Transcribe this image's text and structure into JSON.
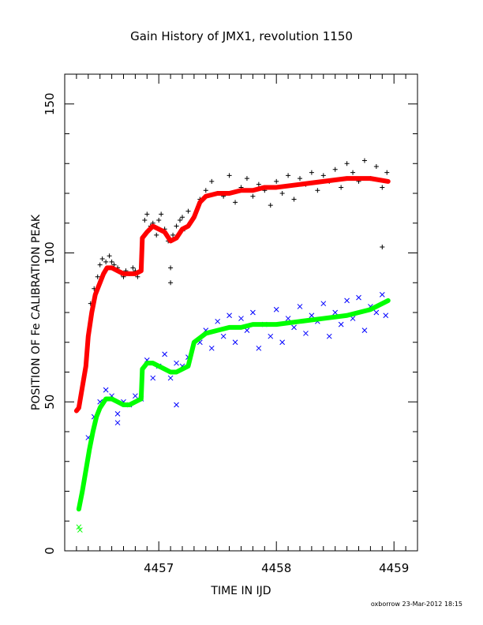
{
  "chart_data": {
    "type": "scatter",
    "title": "Gain History of JMX1, revolution 1150",
    "xlabel": "TIME IN IJD",
    "ylabel": "POSITION OF Fe CALIBRATION PEAK",
    "credit": "oxborrow 23-Mar-2012 18:15",
    "xlim": [
      4456.2,
      4459.2
    ],
    "ylim": [
      0,
      160
    ],
    "xticks": [
      4457,
      4458,
      4459
    ],
    "yticks": [
      0,
      50,
      100,
      150
    ],
    "grid": false,
    "series": [
      {
        "marker": "plus",
        "color": "#000000",
        "x": [
          4456.42,
          4456.45,
          4456.48,
          4456.5,
          4456.52,
          4456.55,
          4456.58,
          4456.6,
          4456.62,
          4456.65,
          4456.68,
          4456.7,
          4456.72,
          4456.75,
          4456.78,
          4456.8,
          4456.82,
          4456.88,
          4456.9,
          4456.93,
          4456.95,
          4456.98,
          4457.0,
          4457.02,
          4457.05,
          4457.08,
          4457.1,
          4457.12,
          4457.15,
          4457.18,
          4457.2,
          4457.22,
          4457.25,
          4457.35,
          4457.4,
          4457.45,
          4457.5,
          4457.55,
          4457.6,
          4457.65,
          4457.7,
          4457.75,
          4457.8,
          4457.85,
          4457.9,
          4457.95,
          4458.0,
          4458.05,
          4458.1,
          4458.15,
          4458.2,
          4458.25,
          4458.3,
          4458.35,
          4458.4,
          4458.45,
          4458.5,
          4458.55,
          4458.6,
          4458.65,
          4458.7,
          4458.75,
          4458.8,
          4458.85,
          4458.9,
          4458.94,
          4457.1,
          4458.9
        ],
        "y": [
          83,
          88,
          92,
          96,
          98,
          97,
          99,
          97,
          96,
          95,
          93,
          92,
          94,
          93,
          95,
          94,
          92,
          111,
          113,
          109,
          110,
          106,
          111,
          113,
          108,
          104,
          90,
          106,
          109,
          111,
          112,
          108,
          114,
          118,
          121,
          124,
          120,
          119,
          126,
          117,
          122,
          125,
          119,
          123,
          121,
          116,
          124,
          120,
          126,
          118,
          125,
          123,
          127,
          121,
          126,
          124,
          128,
          122,
          130,
          127,
          124,
          131,
          125,
          129,
          122,
          127,
          95,
          102
        ]
      },
      {
        "marker": "line",
        "color": "#ff0000",
        "x": [
          4456.3,
          4456.32,
          4456.35,
          4456.38,
          4456.4,
          4456.43,
          4456.46,
          4456.5,
          4456.53,
          4456.56,
          4456.6,
          4456.65,
          4456.7,
          4456.75,
          4456.8,
          4456.85,
          4456.86,
          4456.9,
          4456.95,
          4457.0,
          4457.05,
          4457.1,
          4457.15,
          4457.2,
          4457.25,
          4457.3,
          4457.35,
          4457.4,
          4457.5,
          4457.6,
          4457.7,
          4457.8,
          4457.9,
          4458.0,
          4458.2,
          4458.4,
          4458.6,
          4458.8,
          4458.95
        ],
        "y": [
          47,
          48,
          55,
          62,
          72,
          80,
          86,
          90,
          93,
          95,
          95,
          94,
          93,
          93,
          93,
          94,
          105,
          107,
          109,
          108,
          107,
          104,
          105,
          108,
          109,
          112,
          117,
          119,
          120,
          120,
          121,
          121,
          122,
          122,
          123,
          124,
          125,
          125,
          124
        ]
      },
      {
        "marker": "cross",
        "color": "#0000ff",
        "x": [
          4456.4,
          4456.45,
          4456.5,
          4456.55,
          4456.6,
          4456.65,
          4456.7,
          4456.75,
          4456.8,
          4456.85,
          4456.9,
          4456.95,
          4457.0,
          4457.05,
          4457.1,
          4457.15,
          4457.2,
          4457.25,
          4457.35,
          4457.4,
          4457.45,
          4457.5,
          4457.55,
          4457.6,
          4457.65,
          4457.7,
          4457.75,
          4457.8,
          4457.85,
          4457.9,
          4457.95,
          4458.0,
          4458.05,
          4458.1,
          4458.15,
          4458.2,
          4458.25,
          4458.3,
          4458.35,
          4458.4,
          4458.45,
          4458.5,
          4458.55,
          4458.6,
          4458.65,
          4458.7,
          4458.75,
          4458.8,
          4458.85,
          4458.9,
          4458.93,
          4457.15,
          4456.65
        ],
        "y": [
          38,
          45,
          50,
          54,
          52,
          46,
          50,
          49,
          52,
          51,
          64,
          58,
          62,
          66,
          58,
          63,
          62,
          65,
          70,
          74,
          68,
          77,
          72,
          79,
          70,
          78,
          74,
          80,
          68,
          76,
          72,
          81,
          70,
          78,
          75,
          82,
          73,
          79,
          77,
          83,
          72,
          80,
          76,
          84,
          78,
          85,
          74,
          82,
          80,
          86,
          79,
          49,
          43
        ]
      },
      {
        "marker": "line",
        "color": "#00ff00",
        "x": [
          4456.32,
          4456.35,
          4456.38,
          4456.41,
          4456.44,
          4456.47,
          4456.5,
          4456.55,
          4456.6,
          4456.65,
          4456.7,
          4456.75,
          4456.8,
          4456.85,
          4456.86,
          4456.9,
          4456.95,
          4457.0,
          4457.05,
          4457.1,
          4457.15,
          4457.2,
          4457.25,
          4457.3,
          4457.4,
          4457.5,
          4457.6,
          4457.7,
          4457.8,
          4457.9,
          4458.0,
          4458.2,
          4458.4,
          4458.6,
          4458.8,
          4458.95
        ],
        "y": [
          14,
          20,
          27,
          34,
          40,
          45,
          48,
          51,
          51,
          50,
          49,
          49,
          50,
          51,
          61,
          63,
          63,
          62,
          61,
          60,
          60,
          61,
          62,
          70,
          73,
          74,
          75,
          75,
          76,
          76,
          76,
          77,
          78,
          79,
          81,
          84
        ]
      },
      {
        "marker": "cross",
        "color": "#00ff00",
        "x": [
          4456.32,
          4456.33
        ],
        "y": [
          8,
          7
        ]
      }
    ]
  }
}
